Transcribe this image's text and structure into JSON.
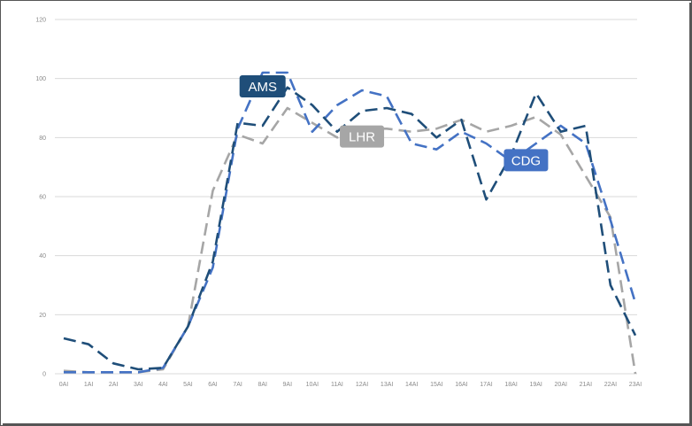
{
  "chart_data": {
    "type": "line",
    "title": "",
    "xlabel": "",
    "ylabel": "",
    "x": [
      "0AI",
      "1AI",
      "2AI",
      "3AI",
      "4AI",
      "5AI",
      "6AI",
      "7AI",
      "8AI",
      "9AI",
      "10AI",
      "11AI",
      "12AI",
      "13AI",
      "14AI",
      "15AI",
      "16AI",
      "17AI",
      "18AI",
      "19AI",
      "20AI",
      "21AI",
      "22AI",
      "23AI"
    ],
    "ylim": [
      0,
      120
    ],
    "yticks": [
      0,
      20,
      40,
      60,
      80,
      100,
      120
    ],
    "grid": true,
    "line_style": "dashed",
    "series": [
      {
        "name": "AMS",
        "color": "#1f4e79",
        "values": [
          12,
          10,
          3.5,
          1.5,
          2,
          16,
          38,
          85,
          84,
          97,
          91,
          82,
          89,
          90,
          88,
          80,
          86,
          59,
          74,
          95,
          82,
          84,
          30,
          13
        ]
      },
      {
        "name": "LHR",
        "color": "#a6a6a6",
        "values": [
          1,
          0.5,
          0.5,
          0.5,
          1.5,
          16,
          62,
          81,
          78,
          90,
          85,
          80,
          83,
          83,
          82,
          83,
          86,
          82,
          84,
          87,
          81,
          67,
          53,
          0
        ]
      },
      {
        "name": "CDG",
        "color": "#4472c4",
        "values": [
          0.5,
          0.5,
          0.5,
          0.5,
          2,
          16,
          36,
          83,
          102,
          102,
          82,
          91,
          96,
          94,
          78,
          76,
          82,
          78,
          72,
          78,
          84,
          78,
          52,
          24
        ]
      }
    ]
  }
}
